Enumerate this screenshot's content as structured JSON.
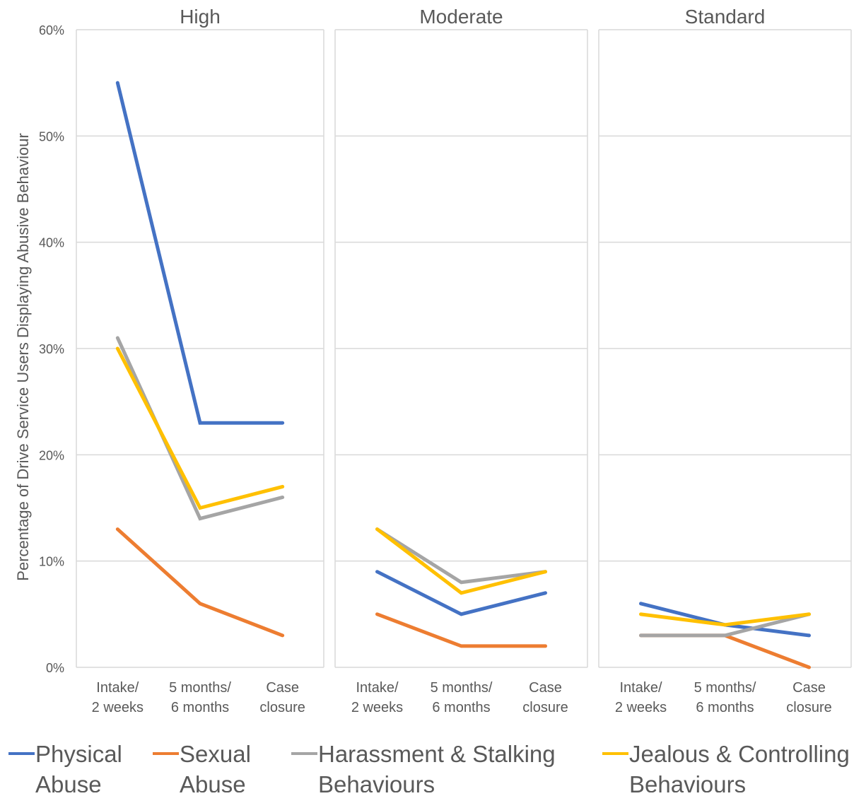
{
  "chart_data": {
    "type": "line",
    "ylabel": "Percentage of Drive Service Users Displaying Abusive Behaviour",
    "ylim": [
      0,
      60
    ],
    "yticks": [
      0,
      10,
      20,
      30,
      40,
      50,
      60
    ],
    "ytick_labels": [
      "0%",
      "10%",
      "20%",
      "30%",
      "40%",
      "50%",
      "60%"
    ],
    "grid": true,
    "legend_position": "bottom",
    "categories": [
      [
        "Intake/",
        "2 weeks"
      ],
      [
        "5 months/",
        "6 months"
      ],
      [
        "Case",
        "closure"
      ]
    ],
    "series_styles": [
      {
        "name_lines": [
          "Physical",
          "Abuse"
        ],
        "color": "#4472C4"
      },
      {
        "name_lines": [
          "Sexual",
          "Abuse"
        ],
        "color": "#ED7D31"
      },
      {
        "name_lines": [
          "Harassment & Stalking",
          "Behaviours"
        ],
        "color": "#A5A5A5"
      },
      {
        "name_lines": [
          "Jealous & Controlling",
          "Behaviours"
        ],
        "color": "#FFC000"
      }
    ],
    "panels": [
      {
        "title": "High",
        "series": [
          {
            "name": "Physical Abuse",
            "values": [
              55,
              23,
              23
            ]
          },
          {
            "name": "Sexual Abuse",
            "values": [
              13,
              6,
              3
            ]
          },
          {
            "name": "Harassment & Stalking Behaviours",
            "values": [
              31,
              14,
              16
            ]
          },
          {
            "name": "Jealous & Controlling Behaviours",
            "values": [
              30,
              15,
              17
            ]
          }
        ]
      },
      {
        "title": "Moderate",
        "series": [
          {
            "name": "Physical Abuse",
            "values": [
              9,
              5,
              7
            ]
          },
          {
            "name": "Sexual Abuse",
            "values": [
              5,
              2,
              2
            ]
          },
          {
            "name": "Harassment & Stalking Behaviours",
            "values": [
              13,
              8,
              9
            ]
          },
          {
            "name": "Jealous & Controlling Behaviours",
            "values": [
              13,
              7,
              9
            ]
          }
        ]
      },
      {
        "title": "Standard",
        "series": [
          {
            "name": "Physical Abuse",
            "values": [
              6,
              4,
              3
            ]
          },
          {
            "name": "Sexual Abuse",
            "values": [
              3,
              3,
              0
            ]
          },
          {
            "name": "Harassment & Stalking Behaviours",
            "values": [
              3,
              3,
              5
            ]
          },
          {
            "name": "Jealous & Controlling Behaviours",
            "values": [
              5,
              4,
              5
            ]
          }
        ]
      }
    ]
  }
}
